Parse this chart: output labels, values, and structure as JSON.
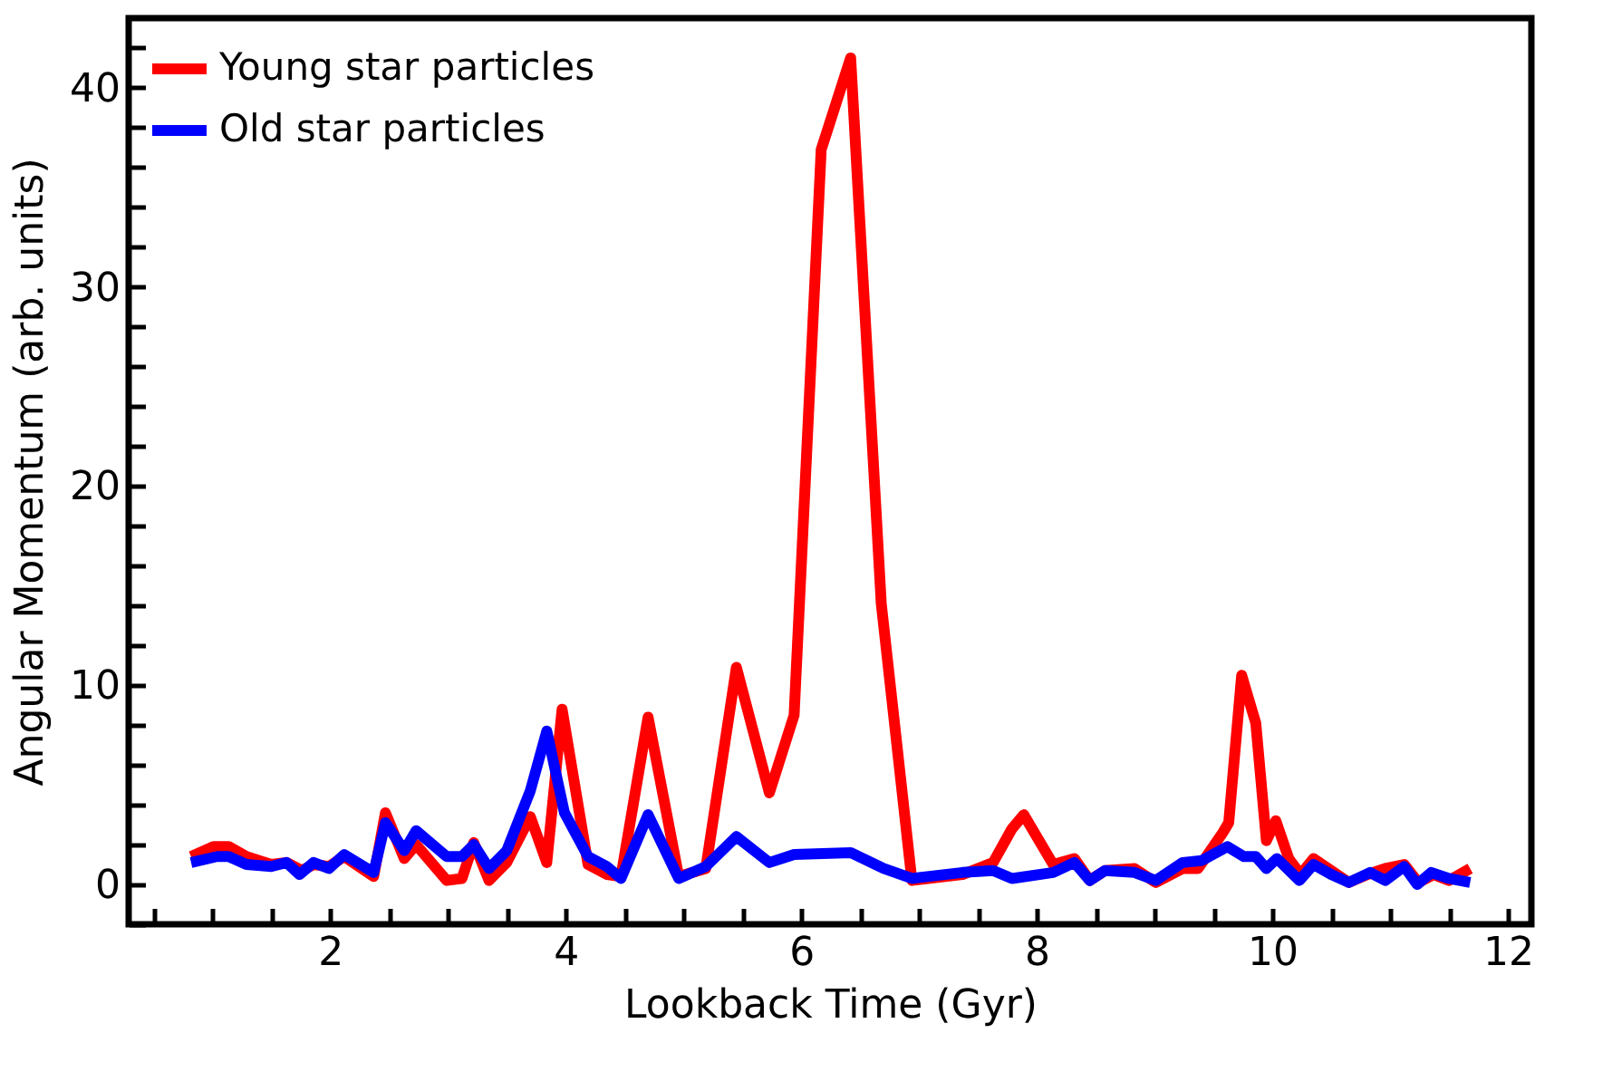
{
  "chart_data": {
    "type": "line",
    "xlabel": "Lookback Time (Gyr)",
    "ylabel": "Angular Momentum (arb. units)",
    "xlim": [
      0.29,
      12.2
    ],
    "ylim": [
      -2,
      43.5
    ],
    "xticks": [
      {
        "value": 0.5,
        "label": null
      },
      {
        "value": 1,
        "label": null
      },
      {
        "value": 1.5,
        "label": null
      },
      2,
      {
        "value": 2.5,
        "label": null
      },
      {
        "value": 3,
        "label": null
      },
      {
        "value": 3.5,
        "label": null
      },
      4,
      {
        "value": 4.5,
        "label": null
      },
      {
        "value": 5,
        "label": null
      },
      {
        "value": 5.5,
        "label": null
      },
      6,
      {
        "value": 6.5,
        "label": null
      },
      {
        "value": 7,
        "label": null
      },
      {
        "value": 7.5,
        "label": null
      },
      8,
      {
        "value": 8.5,
        "label": null
      },
      {
        "value": 9,
        "label": null
      },
      {
        "value": 9.5,
        "label": null
      },
      10,
      {
        "value": 10.5,
        "label": null
      },
      {
        "value": 11,
        "label": null
      },
      {
        "value": 11.5,
        "label": null
      },
      12
    ],
    "yticks": [
      {
        "value": -2,
        "label": null
      },
      0,
      {
        "value": 2,
        "label": null
      },
      {
        "value": 4,
        "label": null
      },
      {
        "value": 6,
        "label": null
      },
      {
        "value": 8,
        "label": null
      },
      10,
      {
        "value": 12,
        "label": null
      },
      {
        "value": 14,
        "label": null
      },
      {
        "value": 16,
        "label": null
      },
      {
        "value": 18,
        "label": null
      },
      20,
      {
        "value": 22,
        "label": null
      },
      {
        "value": 24,
        "label": null
      },
      {
        "value": 26,
        "label": null
      },
      {
        "value": 28,
        "label": null
      },
      30,
      {
        "value": 32,
        "label": null
      },
      {
        "value": 34,
        "label": null
      },
      {
        "value": 36,
        "label": null
      },
      {
        "value": 38,
        "label": null
      },
      40,
      {
        "value": 42,
        "label": null
      }
    ],
    "grid": false,
    "legend": "top left",
    "series": [
      {
        "name": "Young star particles",
        "color": "#ff0000",
        "x": [
          0.82,
          1.01,
          1.14,
          1.29,
          1.5,
          1.63,
          1.76,
          1.86,
          1.99,
          2.12,
          2.37,
          2.47,
          2.63,
          2.73,
          2.99,
          3.12,
          3.22,
          3.35,
          3.5,
          3.7,
          3.84,
          3.97,
          4.19,
          4.35,
          4.47,
          4.7,
          4.96,
          5.19,
          5.45,
          5.73,
          5.94,
          6.17,
          6.42,
          6.68,
          6.94,
          7.37,
          7.63,
          7.79,
          7.89,
          8.14,
          8.32,
          8.45,
          8.58,
          8.83,
          9.01,
          9.24,
          9.37,
          9.58,
          9.63,
          9.74,
          9.86,
          9.95,
          10.03,
          10.14,
          10.24,
          10.35,
          10.5,
          10.65,
          10.81,
          10.96,
          11.12,
          11.24,
          11.37,
          11.5,
          11.68
        ],
        "values": [
          1.4,
          1.9,
          1.9,
          1.4,
          1.0,
          1.1,
          0.7,
          1.0,
          0.9,
          1.4,
          0.4,
          3.6,
          1.3,
          2.0,
          0.2,
          0.3,
          2.1,
          0.2,
          1.1,
          3.4,
          1.1,
          8.8,
          1.0,
          0.5,
          0.4,
          8.4,
          0.4,
          0.8,
          10.9,
          4.6,
          8.5,
          36.9,
          41.5,
          14.1,
          0.2,
          0.5,
          1.1,
          2.8,
          3.5,
          1.0,
          1.3,
          0.2,
          0.7,
          0.8,
          0.1,
          0.8,
          0.8,
          2.6,
          3.1,
          10.5,
          8.1,
          2.2,
          3.2,
          1.3,
          0.5,
          1.3,
          0.7,
          0.1,
          0.5,
          0.8,
          1.0,
          0.1,
          0.5,
          0.2,
          0.8
        ]
      },
      {
        "name": "Old star particles",
        "color": "#0000ff",
        "x": [
          0.82,
          1.04,
          1.14,
          1.29,
          1.5,
          1.63,
          1.74,
          1.86,
          1.99,
          2.12,
          2.37,
          2.47,
          2.63,
          2.73,
          2.99,
          3.12,
          3.22,
          3.35,
          3.5,
          3.7,
          3.84,
          3.99,
          4.19,
          4.35,
          4.47,
          4.7,
          4.96,
          5.19,
          5.45,
          5.73,
          5.94,
          6.42,
          6.7,
          6.94,
          7.37,
          7.63,
          7.79,
          8.14,
          8.32,
          8.45,
          8.58,
          8.83,
          9.01,
          9.24,
          9.4,
          9.62,
          9.76,
          9.86,
          9.95,
          10.04,
          10.23,
          10.35,
          10.5,
          10.65,
          10.83,
          10.96,
          11.12,
          11.23,
          11.35,
          11.5,
          11.68
        ],
        "values": [
          1.1,
          1.4,
          1.4,
          1.0,
          0.9,
          1.1,
          0.5,
          1.1,
          0.8,
          1.5,
          0.6,
          3.1,
          1.7,
          2.7,
          1.4,
          1.4,
          2.0,
          0.8,
          1.7,
          4.7,
          7.7,
          3.6,
          1.4,
          0.9,
          0.3,
          3.5,
          0.3,
          0.9,
          2.4,
          1.1,
          1.5,
          1.6,
          0.8,
          0.3,
          0.6,
          0.7,
          0.3,
          0.6,
          1.1,
          0.2,
          0.7,
          0.6,
          0.2,
          1.1,
          1.2,
          1.9,
          1.4,
          1.4,
          0.8,
          1.3,
          0.2,
          1.0,
          0.5,
          0.1,
          0.6,
          0.2,
          0.9,
          0.0,
          0.6,
          0.3,
          0.1
        ]
      }
    ]
  }
}
